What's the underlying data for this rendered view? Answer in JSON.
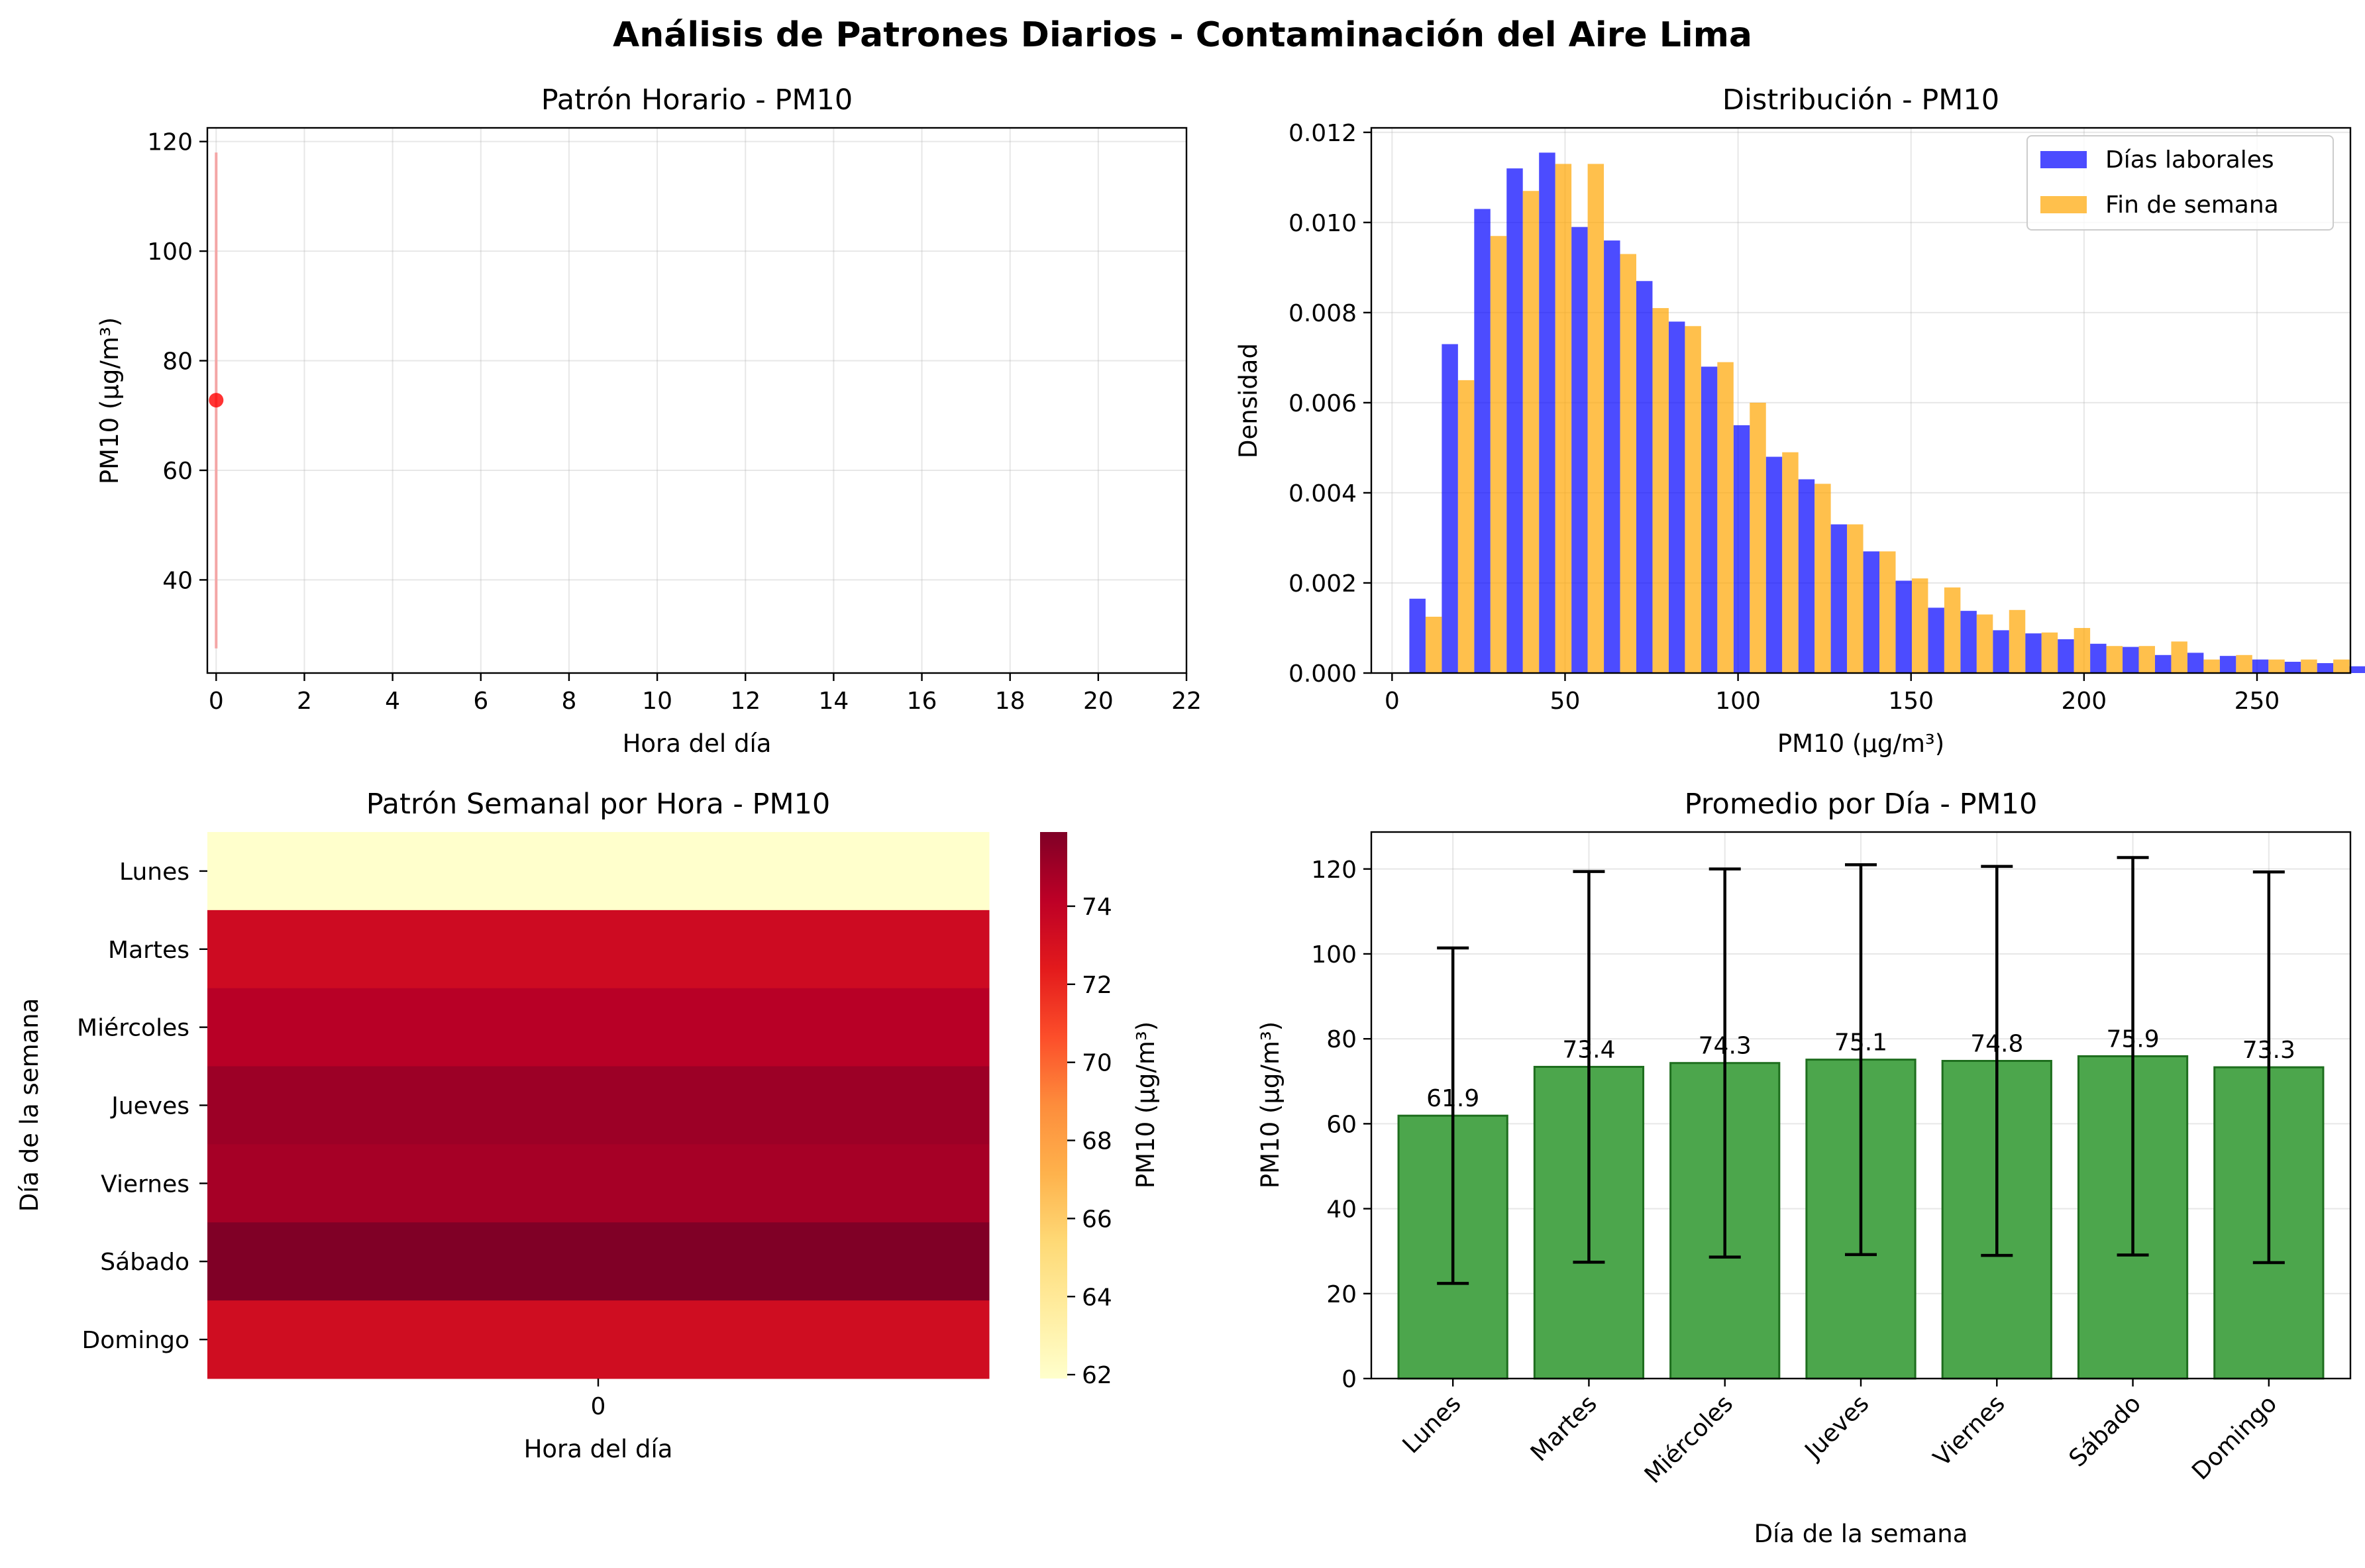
{
  "figure": {
    "suptitle": "Análisis de Patrones Diarios - Contaminación del Aire Lima"
  },
  "chart_data": [
    {
      "id": "hourly",
      "type": "line",
      "title": "Patrón Horario - PM10",
      "xlabel": "Hora del día",
      "ylabel": "PM10 (µg/m³)",
      "xlim": [
        -0.2,
        22
      ],
      "ylim": [
        23,
        122.5
      ],
      "xticks": [
        0,
        2,
        4,
        6,
        8,
        10,
        12,
        14,
        16,
        18,
        20,
        22
      ],
      "yticks": [
        40,
        60,
        80,
        100,
        120
      ],
      "grid": true,
      "points": [
        {
          "x": 0,
          "y": 72.8
        }
      ],
      "band": {
        "x": 0,
        "low": 27.5,
        "high": 118.0
      },
      "colors": {
        "line": "#ff0000",
        "band": "#f4a6a6"
      }
    },
    {
      "id": "distribution",
      "type": "bar",
      "title": "Distribución - PM10",
      "xlabel": "PM10 (µg/m³)",
      "ylabel": "Densidad",
      "xlim": [
        -6,
        277
      ],
      "ylim": [
        0,
        0.0121
      ],
      "xticks": [
        0,
        50,
        100,
        150,
        200,
        250
      ],
      "yticks": [
        0.0,
        0.002,
        0.004,
        0.006,
        0.008,
        0.01,
        0.012
      ],
      "ytick_format": 3,
      "grid": true,
      "legend": "top-right",
      "bin_start": 5,
      "bin_width": 9.37,
      "series": [
        {
          "name": "Días laborales",
          "color": "#0000ff",
          "values": [
            0.00165,
            0.0073,
            0.0103,
            0.0112,
            0.01155,
            0.0099,
            0.0096,
            0.0087,
            0.0078,
            0.0068,
            0.0055,
            0.0048,
            0.0043,
            0.0033,
            0.0027,
            0.00205,
            0.00145,
            0.00138,
            0.00095,
            0.00088,
            0.00075,
            0.00065,
            0.00058,
            0.0004,
            0.00045,
            0.00038,
            0.0003,
            0.00025,
            0.00022,
            0.00015
          ]
        },
        {
          "name": "Fin de semana",
          "color": "#ffa500",
          "values": [
            0.00125,
            0.0065,
            0.0097,
            0.0107,
            0.0113,
            0.0113,
            0.0093,
            0.0081,
            0.0077,
            0.0069,
            0.006,
            0.0049,
            0.0042,
            0.0033,
            0.0027,
            0.0021,
            0.0019,
            0.0013,
            0.0014,
            0.0009,
            0.001,
            0.0006,
            0.0006,
            0.0007,
            0.0003,
            0.0004,
            0.0003,
            0.0003,
            0.0003,
            0.0002
          ]
        }
      ]
    },
    {
      "id": "heatmap",
      "type": "heatmap",
      "title": "Patrón Semanal por Hora - PM10",
      "xlabel": "Hora del día",
      "ylabel": "Día de la semana",
      "x_categories": [
        "0"
      ],
      "y_categories": [
        "Lunes",
        "Martes",
        "Miércoles",
        "Jueves",
        "Viernes",
        "Sábado",
        "Domingo"
      ],
      "values": [
        [
          61.9
        ],
        [
          73.4
        ],
        [
          74.3
        ],
        [
          75.1
        ],
        [
          74.8
        ],
        [
          75.9
        ],
        [
          73.3
        ]
      ],
      "colorbar": {
        "label": "PM10 (µg/m³)",
        "vmin": 61.9,
        "vmax": 75.9,
        "ticks": [
          62,
          64,
          66,
          68,
          70,
          72,
          74
        ]
      },
      "colormap": [
        "#ffffcc",
        "#ffeda0",
        "#fed976",
        "#feb24c",
        "#fd8d3c",
        "#fc4e2a",
        "#e31a1c",
        "#bd0026",
        "#800026"
      ]
    },
    {
      "id": "daily",
      "type": "bar",
      "title": "Promedio por Día - PM10",
      "xlabel": "Día de la semana",
      "ylabel": "PM10 (µg/m³)",
      "ylim": [
        0,
        128.7
      ],
      "yticks": [
        0,
        20,
        40,
        60,
        80,
        100,
        120
      ],
      "grid": true,
      "categories": [
        "Lunes",
        "Martes",
        "Miércoles",
        "Jueves",
        "Viernes",
        "Sábado",
        "Domingo"
      ],
      "values": [
        61.9,
        73.4,
        74.3,
        75.1,
        74.8,
        75.9,
        73.3
      ],
      "value_labels": [
        "61.9",
        "73.4",
        "74.3",
        "75.1",
        "74.8",
        "75.9",
        "73.3"
      ],
      "errors": [
        39.5,
        46.0,
        45.7,
        45.9,
        45.8,
        46.8,
        46.0
      ],
      "colors": {
        "bar": "#4ca64c",
        "edge": "#1e6e1e",
        "error": "#000000"
      }
    }
  ]
}
